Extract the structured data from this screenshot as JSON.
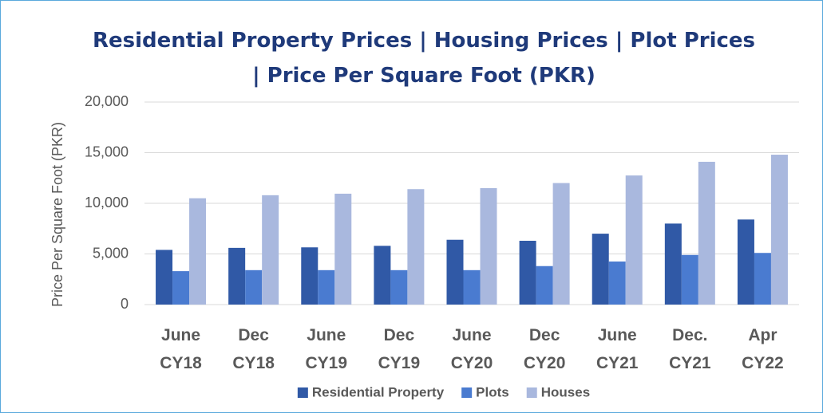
{
  "chart_data": {
    "type": "bar",
    "title": "Residential Property Prices | Housing Prices | Plot Prices | Price Per Square Foot (PKR)",
    "y_label": "Price Per Square Foot (PKR)",
    "categories": [
      "June CY18",
      "Dec CY18",
      "June CY19",
      "Dec CY19",
      "June CY20",
      "Dec CY20",
      "June CY21",
      "Dec. CY21",
      "Apr CY22"
    ],
    "series": [
      {
        "name": "Residential Property",
        "color": "#3059a6",
        "values": [
          5400,
          5600,
          5650,
          5800,
          6400,
          6300,
          7000,
          8000,
          8400
        ]
      },
      {
        "name": "Plots",
        "color": "#4a7bd0",
        "values": [
          3300,
          3400,
          3400,
          3400,
          3400,
          3800,
          4250,
          4900,
          5100
        ]
      },
      {
        "name": "Houses",
        "color": "#a9b8de",
        "values": [
          10500,
          10800,
          10950,
          11400,
          11500,
          12000,
          12750,
          14100,
          14800
        ]
      }
    ],
    "ylim": [
      0,
      20000
    ],
    "yticks": [
      0,
      {
        "value": 5000,
        "label": "5,000"
      },
      {
        "value": 10000,
        "label": "10,000"
      },
      {
        "value": 15000,
        "label": "15,000"
      },
      {
        "value": 20000,
        "label": "20,000"
      }
    ],
    "grid": true,
    "legend": "bottom"
  }
}
